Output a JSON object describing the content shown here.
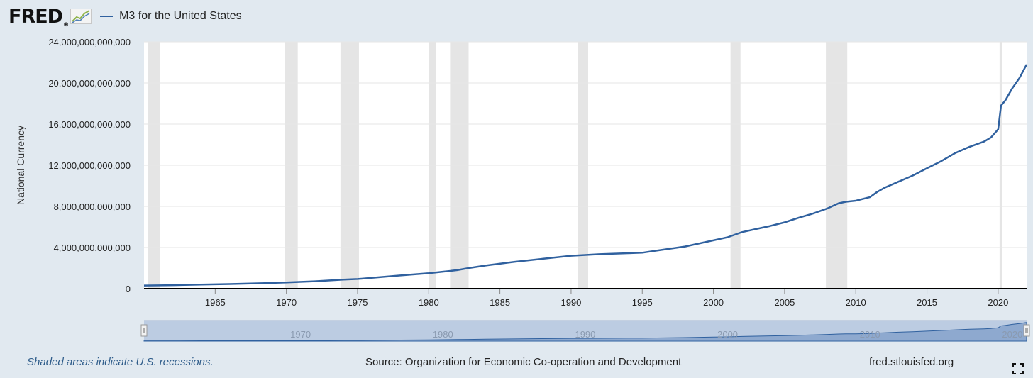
{
  "header": {
    "logo_text": "FRED",
    "logo_reg": "®",
    "legend_label": "M3 for the United States"
  },
  "footer": {
    "recession_note": "Shaded areas indicate U.S. recessions.",
    "source": "Source: Organization for Economic Co-operation and Development",
    "url": "fred.stlouisfed.org"
  },
  "icons": {
    "logo": "fred-chart-logo-icon",
    "expand": "fullscreen-expand-icon"
  },
  "colors": {
    "line": "#30619f",
    "recession": "#e5e5e5",
    "background": "#e1e9f0"
  },
  "chart_data": {
    "type": "line",
    "ylabel": "National Currency",
    "ylim": [
      0,
      24000000000000
    ],
    "yticks": [
      0,
      4000000000000,
      8000000000000,
      12000000000000,
      16000000000000,
      20000000000000,
      24000000000000
    ],
    "ytick_labels": [
      "0",
      "4,000,000,000,000",
      "8,000,000,000,000",
      "12,000,000,000,000",
      "16,000,000,000,000",
      "20,000,000,000,000",
      "24,000,000,000,000"
    ],
    "xlim": [
      1960.0,
      2022.0
    ],
    "xticks": [
      1965,
      1970,
      1975,
      1980,
      1985,
      1990,
      1995,
      2000,
      2005,
      2010,
      2015,
      2020
    ],
    "xtick_labels": [
      "1965",
      "1970",
      "1975",
      "1980",
      "1985",
      "1990",
      "1995",
      "2000",
      "2005",
      "2010",
      "2015",
      "2020"
    ],
    "grid": true,
    "recessions": [
      [
        1960.3,
        1961.1
      ],
      [
        1969.9,
        1970.8
      ],
      [
        1973.8,
        1975.1
      ],
      [
        1980.0,
        1980.5
      ],
      [
        1981.5,
        1982.8
      ],
      [
        1990.5,
        1991.2
      ],
      [
        2001.2,
        2001.9
      ],
      [
        2007.9,
        2009.4
      ],
      [
        2020.1,
        2020.3
      ]
    ],
    "series": [
      {
        "name": "M3 for the United States",
        "x": [
          1960,
          1962,
          1964,
          1966,
          1968,
          1970,
          1972,
          1974,
          1975,
          1976,
          1978,
          1980,
          1982,
          1982.8,
          1984,
          1986,
          1988,
          1990,
          1992,
          1994,
          1995,
          1996,
          1998,
          2000,
          2001,
          2002,
          2003,
          2004,
          2005,
          2006,
          2007,
          2008,
          2008.8,
          2009.3,
          2010,
          2011,
          2011.5,
          2012,
          2013,
          2014,
          2015,
          2016,
          2017,
          2018,
          2019,
          2019.5,
          2020,
          2020.2,
          2020.5,
          2021,
          2021.5,
          2022
        ],
        "y": [
          300000000000,
          340000000000,
          390000000000,
          450000000000,
          520000000000,
          600000000000,
          720000000000,
          880000000000,
          940000000000,
          1050000000000,
          1280000000000,
          1500000000000,
          1800000000000,
          2000000000000,
          2250000000000,
          2600000000000,
          2900000000000,
          3200000000000,
          3350000000000,
          3450000000000,
          3500000000000,
          3700000000000,
          4100000000000,
          4700000000000,
          5000000000000,
          5500000000000,
          5800000000000,
          6100000000000,
          6450000000000,
          6900000000000,
          7300000000000,
          7800000000000,
          8300000000000,
          8450000000000,
          8550000000000,
          8900000000000,
          9400000000000,
          9800000000000,
          10400000000000,
          11000000000000,
          11700000000000,
          12400000000000,
          13200000000000,
          13800000000000,
          14300000000000,
          14700000000000,
          15500000000000,
          17800000000000,
          18300000000000,
          19500000000000,
          20500000000000,
          21800000000000
        ]
      }
    ],
    "navigator": {
      "xtick_labels": [
        "1970",
        "1980",
        "1990",
        "2000",
        "2010",
        "2020"
      ],
      "xticks": [
        1970,
        1980,
        1990,
        2000,
        2010,
        2020
      ]
    }
  }
}
